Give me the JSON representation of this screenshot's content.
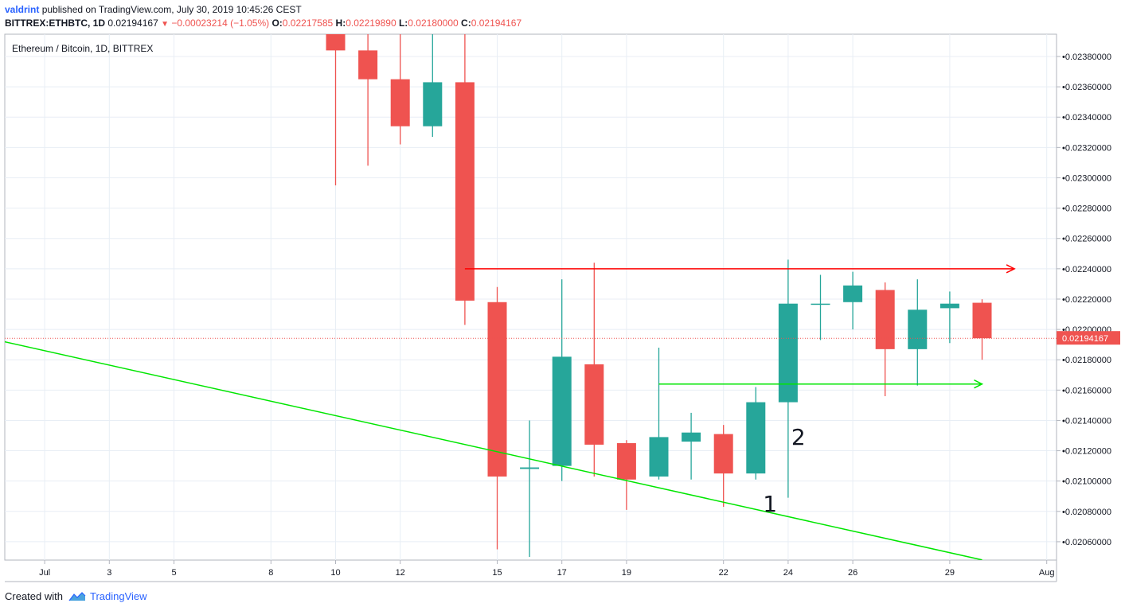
{
  "header": {
    "author": "valdrint",
    "published": "published on TradingView.com, July 30, 2019 10:45:26 CEST",
    "symbol": "BITTREX:ETHBTC, 1D",
    "last": "0.02194167",
    "change": "−0.00023214 (−1.05%)",
    "o_label": "O:",
    "o": "0.02217585",
    "h_label": "H:",
    "h": "0.02219890",
    "l_label": "L:",
    "l": "0.02180000",
    "c_label": "C:",
    "c": "0.02194167"
  },
  "footer": {
    "created": "Created with",
    "brand": "TradingView",
    "logo_icon": "tradingview-logo-icon"
  },
  "colors": {
    "up": "#26a69a",
    "down": "#ef5350",
    "support": "#00e600",
    "resistance": "#ff0000",
    "grid": "#e8eef5"
  },
  "chart_data": {
    "type": "candlestick",
    "title": "Ethereum / Bitcoin, 1D, BITTREX",
    "ylim": [
      0.0205,
      0.024
    ],
    "y_ticks": [
      "0.02060000",
      "0.02080000",
      "0.02100000",
      "0.02120000",
      "0.02140000",
      "0.02160000",
      "0.02180000",
      "0.02200000",
      "0.02220000",
      "0.02240000",
      "0.02260000",
      "0.02280000",
      "0.02300000",
      "0.02320000",
      "0.02340000",
      "0.02360000",
      "0.02380000"
    ],
    "x_ticks": [
      "Jul",
      "3",
      "5",
      "8",
      "10",
      "12",
      "15",
      "17",
      "19",
      "22",
      "24",
      "26",
      "29",
      "Aug"
    ],
    "last_price_label": "0.02194167",
    "grid": true,
    "candles": [
      {
        "date": "2019-07-10",
        "o": 0.024,
        "h": 0.0241,
        "l": 0.02295,
        "c": 0.02384
      },
      {
        "date": "2019-07-11",
        "o": 0.02384,
        "h": 0.024,
        "l": 0.02308,
        "c": 0.02365
      },
      {
        "date": "2019-07-12",
        "o": 0.02365,
        "h": 0.024,
        "l": 0.02322,
        "c": 0.02334
      },
      {
        "date": "2019-07-13",
        "o": 0.02334,
        "h": 0.02395,
        "l": 0.02327,
        "c": 0.02363
      },
      {
        "date": "2019-07-14",
        "o": 0.02363,
        "h": 0.024,
        "l": 0.02203,
        "c": 0.02219
      },
      {
        "date": "2019-07-15",
        "o": 0.02218,
        "h": 0.02228,
        "l": 0.02055,
        "c": 0.02103
      },
      {
        "date": "2019-07-16",
        "o": 0.02108,
        "h": 0.0214,
        "l": 0.0205,
        "c": 0.02109
      },
      {
        "date": "2019-07-17",
        "o": 0.0211,
        "h": 0.02233,
        "l": 0.021,
        "c": 0.02182
      },
      {
        "date": "2019-07-18",
        "o": 0.02177,
        "h": 0.02244,
        "l": 0.02103,
        "c": 0.02124
      },
      {
        "date": "2019-07-19",
        "o": 0.02125,
        "h": 0.02127,
        "l": 0.02081,
        "c": 0.02101
      },
      {
        "date": "2019-07-20",
        "o": 0.02103,
        "h": 0.02188,
        "l": 0.02101,
        "c": 0.02129
      },
      {
        "date": "2019-07-21",
        "o": 0.02126,
        "h": 0.02145,
        "l": 0.02101,
        "c": 0.02132
      },
      {
        "date": "2019-07-22",
        "o": 0.02131,
        "h": 0.02137,
        "l": 0.02083,
        "c": 0.02105
      },
      {
        "date": "2019-07-23",
        "o": 0.02105,
        "h": 0.02162,
        "l": 0.02101,
        "c": 0.02152
      },
      {
        "date": "2019-07-24",
        "o": 0.02152,
        "h": 0.02246,
        "l": 0.02089,
        "c": 0.02217
      },
      {
        "date": "2019-07-25",
        "o": 0.02217,
        "h": 0.02236,
        "l": 0.02193,
        "c": 0.02217
      },
      {
        "date": "2019-07-26",
        "o": 0.02218,
        "h": 0.02238,
        "l": 0.022,
        "c": 0.02229
      },
      {
        "date": "2019-07-27",
        "o": 0.02226,
        "h": 0.02231,
        "l": 0.02156,
        "c": 0.02187
      },
      {
        "date": "2019-07-28",
        "o": 0.02187,
        "h": 0.02233,
        "l": 0.02163,
        "c": 0.02213
      },
      {
        "date": "2019-07-29",
        "o": 0.02214,
        "h": 0.02225,
        "l": 0.02191,
        "c": 0.02217
      },
      {
        "date": "2019-07-30",
        "o": 0.02217585,
        "h": 0.0221989,
        "l": 0.0218,
        "c": 0.02194167
      }
    ],
    "annotations": [
      {
        "type": "trendline",
        "color": "#00e600",
        "from": {
          "date": "2019-06-27",
          "price": 0.02205
        },
        "to": {
          "date": "2019-07-30",
          "price": 0.02048
        }
      },
      {
        "type": "arrow",
        "color": "#ff0000",
        "from": {
          "date": "2019-07-14",
          "price": 0.0224
        },
        "to": {
          "date": "2019-07-31",
          "price": 0.0224
        }
      },
      {
        "type": "arrow",
        "color": "#00e600",
        "from": {
          "date": "2019-07-20",
          "price": 0.02164
        },
        "to": {
          "date": "2019-07-30",
          "price": 0.02164
        }
      },
      {
        "type": "text",
        "text": "1",
        "date": "2019-07-23",
        "price": 0.0208
      },
      {
        "type": "text",
        "text": "2",
        "date": "2019-07-24",
        "price": 0.02124
      }
    ]
  }
}
